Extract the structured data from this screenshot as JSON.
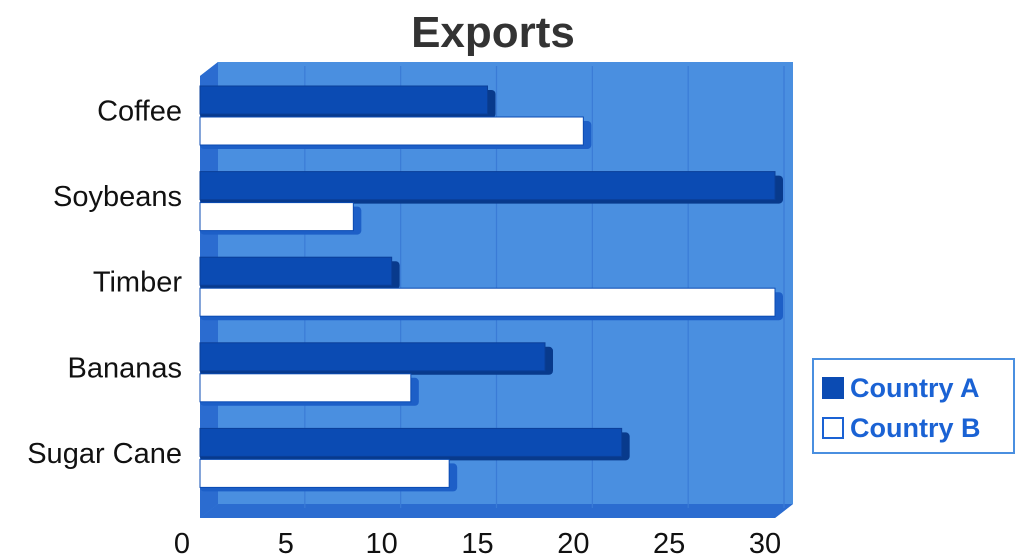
{
  "chart_data": {
    "type": "bar",
    "orientation": "horizontal",
    "title": "Exports",
    "categories": [
      "Coffee",
      "Soybeans",
      "Timber",
      "Bananas",
      "Sugar Cane"
    ],
    "series": [
      {
        "name": "Country A",
        "values": [
          15,
          30,
          10,
          18,
          22
        ]
      },
      {
        "name": "Country B",
        "values": [
          20,
          8,
          30,
          11,
          13
        ]
      }
    ],
    "xlim": [
      0,
      30
    ],
    "xticks": [
      0,
      5,
      10,
      15,
      20,
      25,
      30
    ],
    "grid": true,
    "legend_position": "right"
  },
  "colors": {
    "country_a": "#0b4bb3",
    "country_b": "#ffffff",
    "plot_background": "#4a8fe0",
    "wall_side": "#2b6cd0",
    "wall_top": "#6aa6ec",
    "gridline": "#3a7bd6"
  },
  "legend": {
    "items": [
      {
        "label": "Country A",
        "swatch": "#0b4bb3"
      },
      {
        "label": "Country B",
        "swatch": "#ffffff"
      }
    ]
  }
}
